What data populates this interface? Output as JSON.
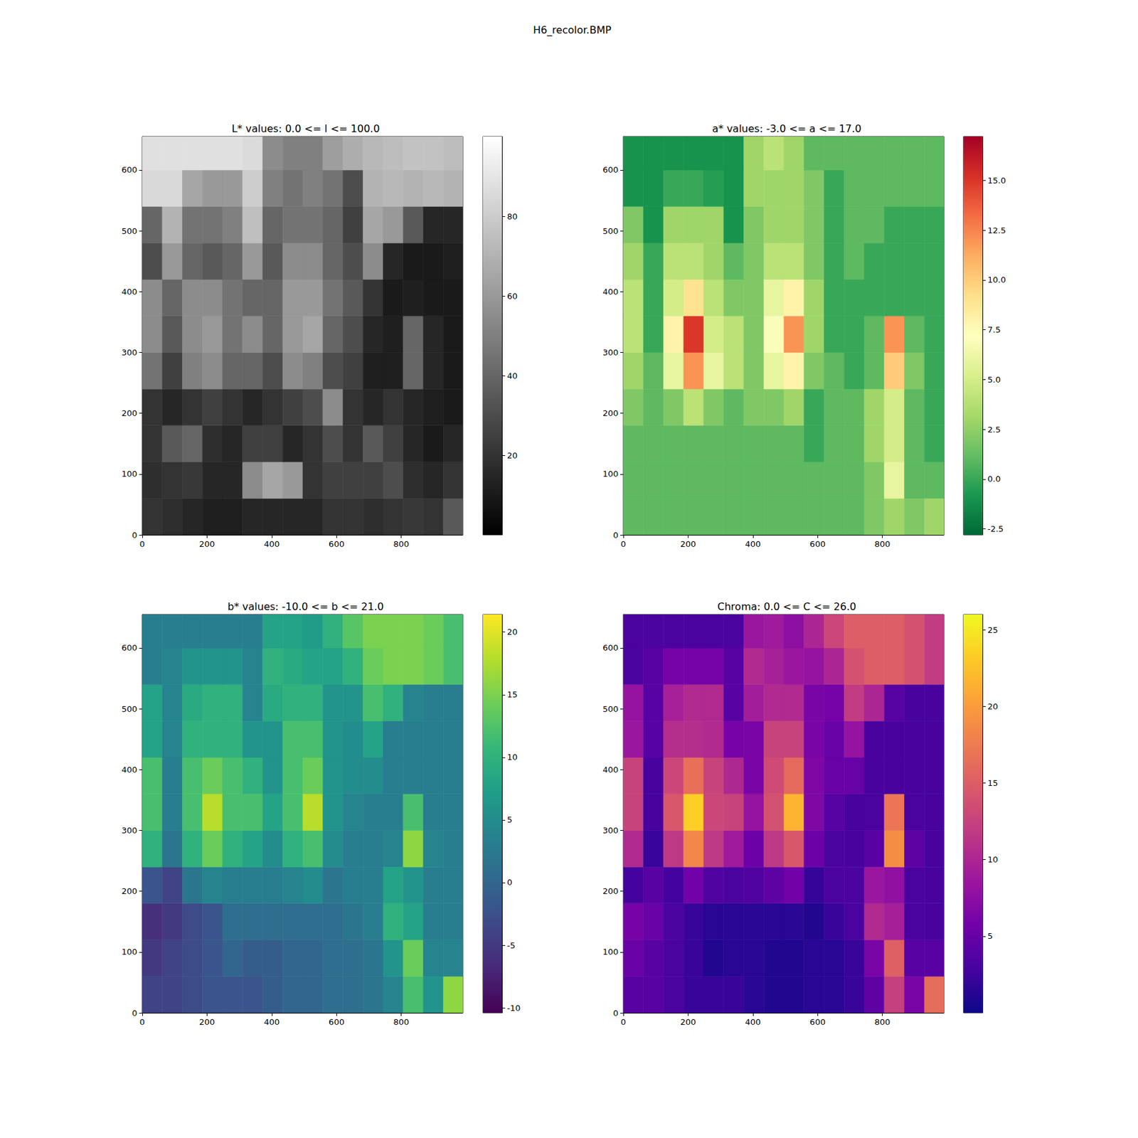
{
  "title": "H6_recolor.BMP",
  "chart_data": [
    {
      "type": "heatmap",
      "title": "L* values: 0.0 <= l <= 100.0",
      "color": "gray",
      "xlim": [
        0,
        990
      ],
      "ylim": [
        0,
        655
      ],
      "xticks": [
        0,
        200,
        400,
        600,
        800
      ],
      "yticks": [
        0,
        100,
        200,
        300,
        400,
        500,
        600
      ],
      "x_edges": [
        0,
        62,
        124,
        186,
        248,
        310,
        372,
        434,
        496,
        558,
        620,
        682,
        744,
        806,
        868,
        930,
        990
      ],
      "y_edges": [
        0,
        60,
        120,
        180,
        240,
        300,
        360,
        420,
        480,
        540,
        600,
        655
      ],
      "z": [
        [
          20,
          18,
          15,
          12,
          12,
          15,
          15,
          15,
          15,
          20,
          20,
          18,
          20,
          22,
          20,
          35
        ],
        [
          18,
          20,
          22,
          15,
          15,
          55,
          65,
          60,
          20,
          25,
          25,
          25,
          30,
          18,
          15,
          20
        ],
        [
          20,
          35,
          40,
          18,
          15,
          25,
          25,
          15,
          20,
          30,
          20,
          35,
          25,
          15,
          10,
          15
        ],
        [
          20,
          15,
          20,
          25,
          20,
          15,
          20,
          25,
          30,
          55,
          20,
          15,
          20,
          15,
          12,
          10
        ],
        [
          45,
          25,
          50,
          55,
          40,
          40,
          30,
          55,
          50,
          30,
          25,
          12,
          12,
          40,
          15,
          10
        ],
        [
          55,
          35,
          55,
          60,
          45,
          55,
          40,
          60,
          65,
          40,
          30,
          15,
          12,
          40,
          15,
          10
        ],
        [
          55,
          40,
          55,
          55,
          45,
          40,
          40,
          60,
          60,
          45,
          35,
          20,
          10,
          12,
          10,
          10
        ],
        [
          30,
          60,
          40,
          35,
          40,
          60,
          35,
          55,
          55,
          40,
          30,
          55,
          15,
          10,
          10,
          12
        ],
        [
          40,
          70,
          45,
          45,
          50,
          75,
          40,
          45,
          45,
          40,
          25,
          65,
          60,
          35,
          15,
          15
        ],
        [
          85,
          85,
          65,
          60,
          60,
          80,
          50,
          45,
          50,
          45,
          30,
          70,
          72,
          70,
          72,
          70
        ],
        [
          88,
          88,
          88,
          88,
          88,
          86,
          55,
          50,
          50,
          62,
          68,
          72,
          74,
          76,
          76,
          74
        ]
      ],
      "colorbar": {
        "range": [
          0,
          100
        ],
        "ticks": [
          20,
          40,
          60,
          80
        ]
      }
    },
    {
      "type": "heatmap",
      "title": "a* values: -3.0 <= a <= 17.0",
      "color": "RdYlGn_r",
      "xlim": [
        0,
        990
      ],
      "ylim": [
        0,
        655
      ],
      "xticks": [
        0,
        200,
        400,
        600,
        800
      ],
      "yticks": [
        0,
        100,
        200,
        300,
        400,
        500,
        600
      ],
      "x_edges": [
        0,
        62,
        124,
        186,
        248,
        310,
        372,
        434,
        496,
        558,
        620,
        682,
        744,
        806,
        868,
        930,
        990
      ],
      "y_edges": [
        0,
        60,
        120,
        180,
        240,
        300,
        360,
        420,
        480,
        540,
        600,
        655
      ],
      "z": [
        [
          1,
          1,
          1,
          1,
          1,
          1,
          1,
          1,
          1,
          1,
          1,
          1,
          2,
          3,
          2,
          3
        ],
        [
          1,
          1,
          1,
          1,
          1,
          1,
          1,
          1,
          1,
          1,
          1,
          1,
          2,
          6,
          1,
          1
        ],
        [
          1,
          1,
          1,
          1,
          1,
          1,
          1,
          1,
          1,
          0,
          1,
          1,
          3,
          5,
          1,
          0
        ],
        [
          2,
          1,
          2,
          4,
          2,
          1,
          2,
          2,
          3,
          0,
          1,
          1,
          3,
          5,
          1,
          0
        ],
        [
          3,
          1,
          6,
          12,
          6,
          4,
          2,
          6,
          8,
          2,
          1,
          0,
          1,
          10,
          2,
          0
        ],
        [
          4,
          0,
          8,
          15,
          5,
          4,
          2,
          7,
          12,
          3,
          0,
          0,
          1,
          12,
          1,
          0
        ],
        [
          4,
          0,
          5,
          9,
          4,
          2,
          2,
          6,
          8,
          3,
          0,
          0,
          0,
          0,
          0,
          0
        ],
        [
          3,
          0,
          4,
          4,
          3,
          1,
          2,
          4,
          4,
          2,
          0,
          1,
          0,
          0,
          0,
          0
        ],
        [
          2,
          -1,
          3,
          3,
          3,
          -1,
          2,
          3,
          3,
          2,
          0,
          1,
          1,
          0,
          0,
          0
        ],
        [
          -1,
          -1,
          0,
          0,
          -0.5,
          -1,
          3,
          3,
          3,
          2,
          0,
          1,
          1,
          1,
          1,
          1
        ],
        [
          -1,
          -1,
          -1,
          -1,
          -1,
          -1,
          3,
          4,
          3,
          1,
          1,
          1,
          1,
          1,
          1,
          1
        ]
      ],
      "colorbar": {
        "range": [
          -2.8,
          17.2
        ],
        "ticks": [
          {
            "value": -2.5,
            "label": "-2.5"
          },
          {
            "value": 0,
            "label": "0.0"
          },
          {
            "value": 2.5,
            "label": "2.5"
          },
          {
            "value": 5,
            "label": "5.0"
          },
          {
            "value": 7.5,
            "label": "7.5"
          },
          {
            "value": 10,
            "label": "10.0"
          },
          {
            "value": 12.5,
            "label": "12.5"
          },
          {
            "value": 15,
            "label": "15.0"
          }
        ]
      }
    },
    {
      "type": "heatmap",
      "title": "b* values: -10.0 <= b <= 21.0",
      "color": "viridis",
      "xlim": [
        0,
        990
      ],
      "ylim": [
        0,
        655
      ],
      "xticks": [
        0,
        200,
        400,
        600,
        800
      ],
      "yticks": [
        0,
        100,
        200,
        300,
        400,
        500,
        600
      ],
      "x_edges": [
        0,
        62,
        124,
        186,
        248,
        310,
        372,
        434,
        496,
        558,
        620,
        682,
        744,
        806,
        868,
        930,
        990
      ],
      "y_edges": [
        0,
        60,
        120,
        180,
        240,
        300,
        360,
        420,
        480,
        540,
        600,
        655
      ],
      "z": [
        [
          -4,
          -4,
          -3,
          -2,
          -2,
          -2,
          -1,
          0,
          0,
          1,
          1,
          2,
          4,
          12,
          6,
          16
        ],
        [
          -5,
          -4,
          -3,
          -2,
          0,
          -1,
          -1,
          0,
          0,
          1,
          1,
          2,
          6,
          14,
          4,
          4
        ],
        [
          -6,
          -5,
          -3,
          -2,
          1,
          1,
          1,
          1,
          1,
          1,
          2,
          3,
          10,
          8,
          3,
          3
        ],
        [
          -2,
          -4,
          2,
          4,
          3,
          3,
          3,
          4,
          5,
          2,
          3,
          3,
          8,
          6,
          3,
          3
        ],
        [
          10,
          2,
          10,
          14,
          10,
          8,
          5,
          10,
          12,
          5,
          3,
          3,
          4,
          16,
          4,
          3
        ],
        [
          12,
          3,
          12,
          18,
          12,
          12,
          8,
          12,
          18,
          6,
          4,
          3,
          3,
          12,
          3,
          3
        ],
        [
          12,
          3,
          12,
          14,
          12,
          10,
          6,
          12,
          14,
          6,
          5,
          5,
          3,
          3,
          3,
          3
        ],
        [
          8,
          4,
          10,
          10,
          10,
          6,
          6,
          12,
          12,
          6,
          5,
          8,
          3,
          3,
          3,
          3
        ],
        [
          8,
          4,
          9,
          10,
          10,
          4,
          9,
          10,
          10,
          6,
          6,
          12,
          10,
          4,
          3,
          3
        ],
        [
          3,
          4,
          6,
          6,
          6,
          4,
          10,
          9,
          8,
          8,
          10,
          14,
          15,
          15,
          14,
          12
        ],
        [
          3,
          3,
          3,
          3,
          3,
          3,
          8,
          8,
          7,
          10,
          13,
          15,
          15,
          15,
          14,
          12
        ]
      ],
      "colorbar": {
        "range": [
          -10.4,
          21.4
        ],
        "ticks": [
          -10,
          -5,
          0,
          5,
          10,
          15,
          20
        ]
      }
    },
    {
      "type": "heatmap",
      "title": "Chroma: 0.0 <= C <= 26.0",
      "color": "plasma",
      "xlim": [
        0,
        990
      ],
      "ylim": [
        0,
        655
      ],
      "xticks": [
        0,
        200,
        400,
        600,
        800
      ],
      "yticks": [
        0,
        100,
        200,
        300,
        400,
        500,
        600
      ],
      "x_edges": [
        0,
        62,
        124,
        186,
        248,
        310,
        372,
        434,
        496,
        558,
        620,
        682,
        744,
        806,
        868,
        930,
        990
      ],
      "y_edges": [
        0,
        60,
        120,
        180,
        240,
        300,
        360,
        420,
        480,
        540,
        600,
        655
      ],
      "z": [
        [
          4.1,
          4.1,
          3.2,
          2.2,
          2.2,
          2.2,
          1.4,
          1,
          1,
          1.4,
          1.4,
          2.2,
          4.5,
          12.4,
          6.3,
          16.3
        ],
        [
          5.1,
          4.1,
          3.2,
          2.2,
          1,
          1.4,
          1.4,
          1,
          1,
          1.4,
          1.4,
          2.2,
          6.3,
          15.2,
          4.1,
          4.1
        ],
        [
          6.1,
          5.1,
          3.2,
          2.2,
          1.4,
          1.4,
          1.4,
          1.4,
          1.4,
          1,
          2.2,
          3.2,
          10.4,
          9.4,
          3.2,
          3
        ],
        [
          2.8,
          4.1,
          2.8,
          5.7,
          3.6,
          3.2,
          3.6,
          4.5,
          5.8,
          2,
          3.2,
          3.2,
          8.5,
          7.8,
          3.2,
          3
        ],
        [
          10.4,
          2.2,
          11.7,
          18.4,
          11.7,
          8.9,
          5.4,
          11.7,
          14.4,
          5.4,
          3.2,
          3,
          4.1,
          18.9,
          4.5,
          3
        ],
        [
          12.6,
          3,
          14.4,
          23.4,
          13,
          12.6,
          8.2,
          13.9,
          21.6,
          6.7,
          4,
          3,
          3.2,
          17,
          3.2,
          3
        ],
        [
          12.6,
          3,
          13,
          16.6,
          12.6,
          10.2,
          6.3,
          13.4,
          16.1,
          6.7,
          5,
          5,
          3,
          3,
          3,
          3
        ],
        [
          8.5,
          4,
          10.8,
          10.8,
          10.4,
          6.1,
          6.3,
          12.6,
          12.6,
          6.3,
          5,
          8.1,
          3,
          3,
          3,
          3
        ],
        [
          8.2,
          4.1,
          9.5,
          10.4,
          10.4,
          4.1,
          9.2,
          10.4,
          10.4,
          6.3,
          6,
          12,
          10,
          4,
          3,
          3
        ],
        [
          3.2,
          4.1,
          6,
          6,
          6,
          4.1,
          10.4,
          9.5,
          8.5,
          8.2,
          10,
          14,
          15,
          15,
          14,
          12
        ],
        [
          3.2,
          3.2,
          3.2,
          3.2,
          3.2,
          3.2,
          8.5,
          8.9,
          7.6,
          10,
          13,
          15,
          15,
          15,
          14,
          12
        ]
      ],
      "colorbar": {
        "range": [
          0,
          26
        ],
        "ticks": [
          5,
          10,
          15,
          20,
          25
        ]
      }
    }
  ]
}
